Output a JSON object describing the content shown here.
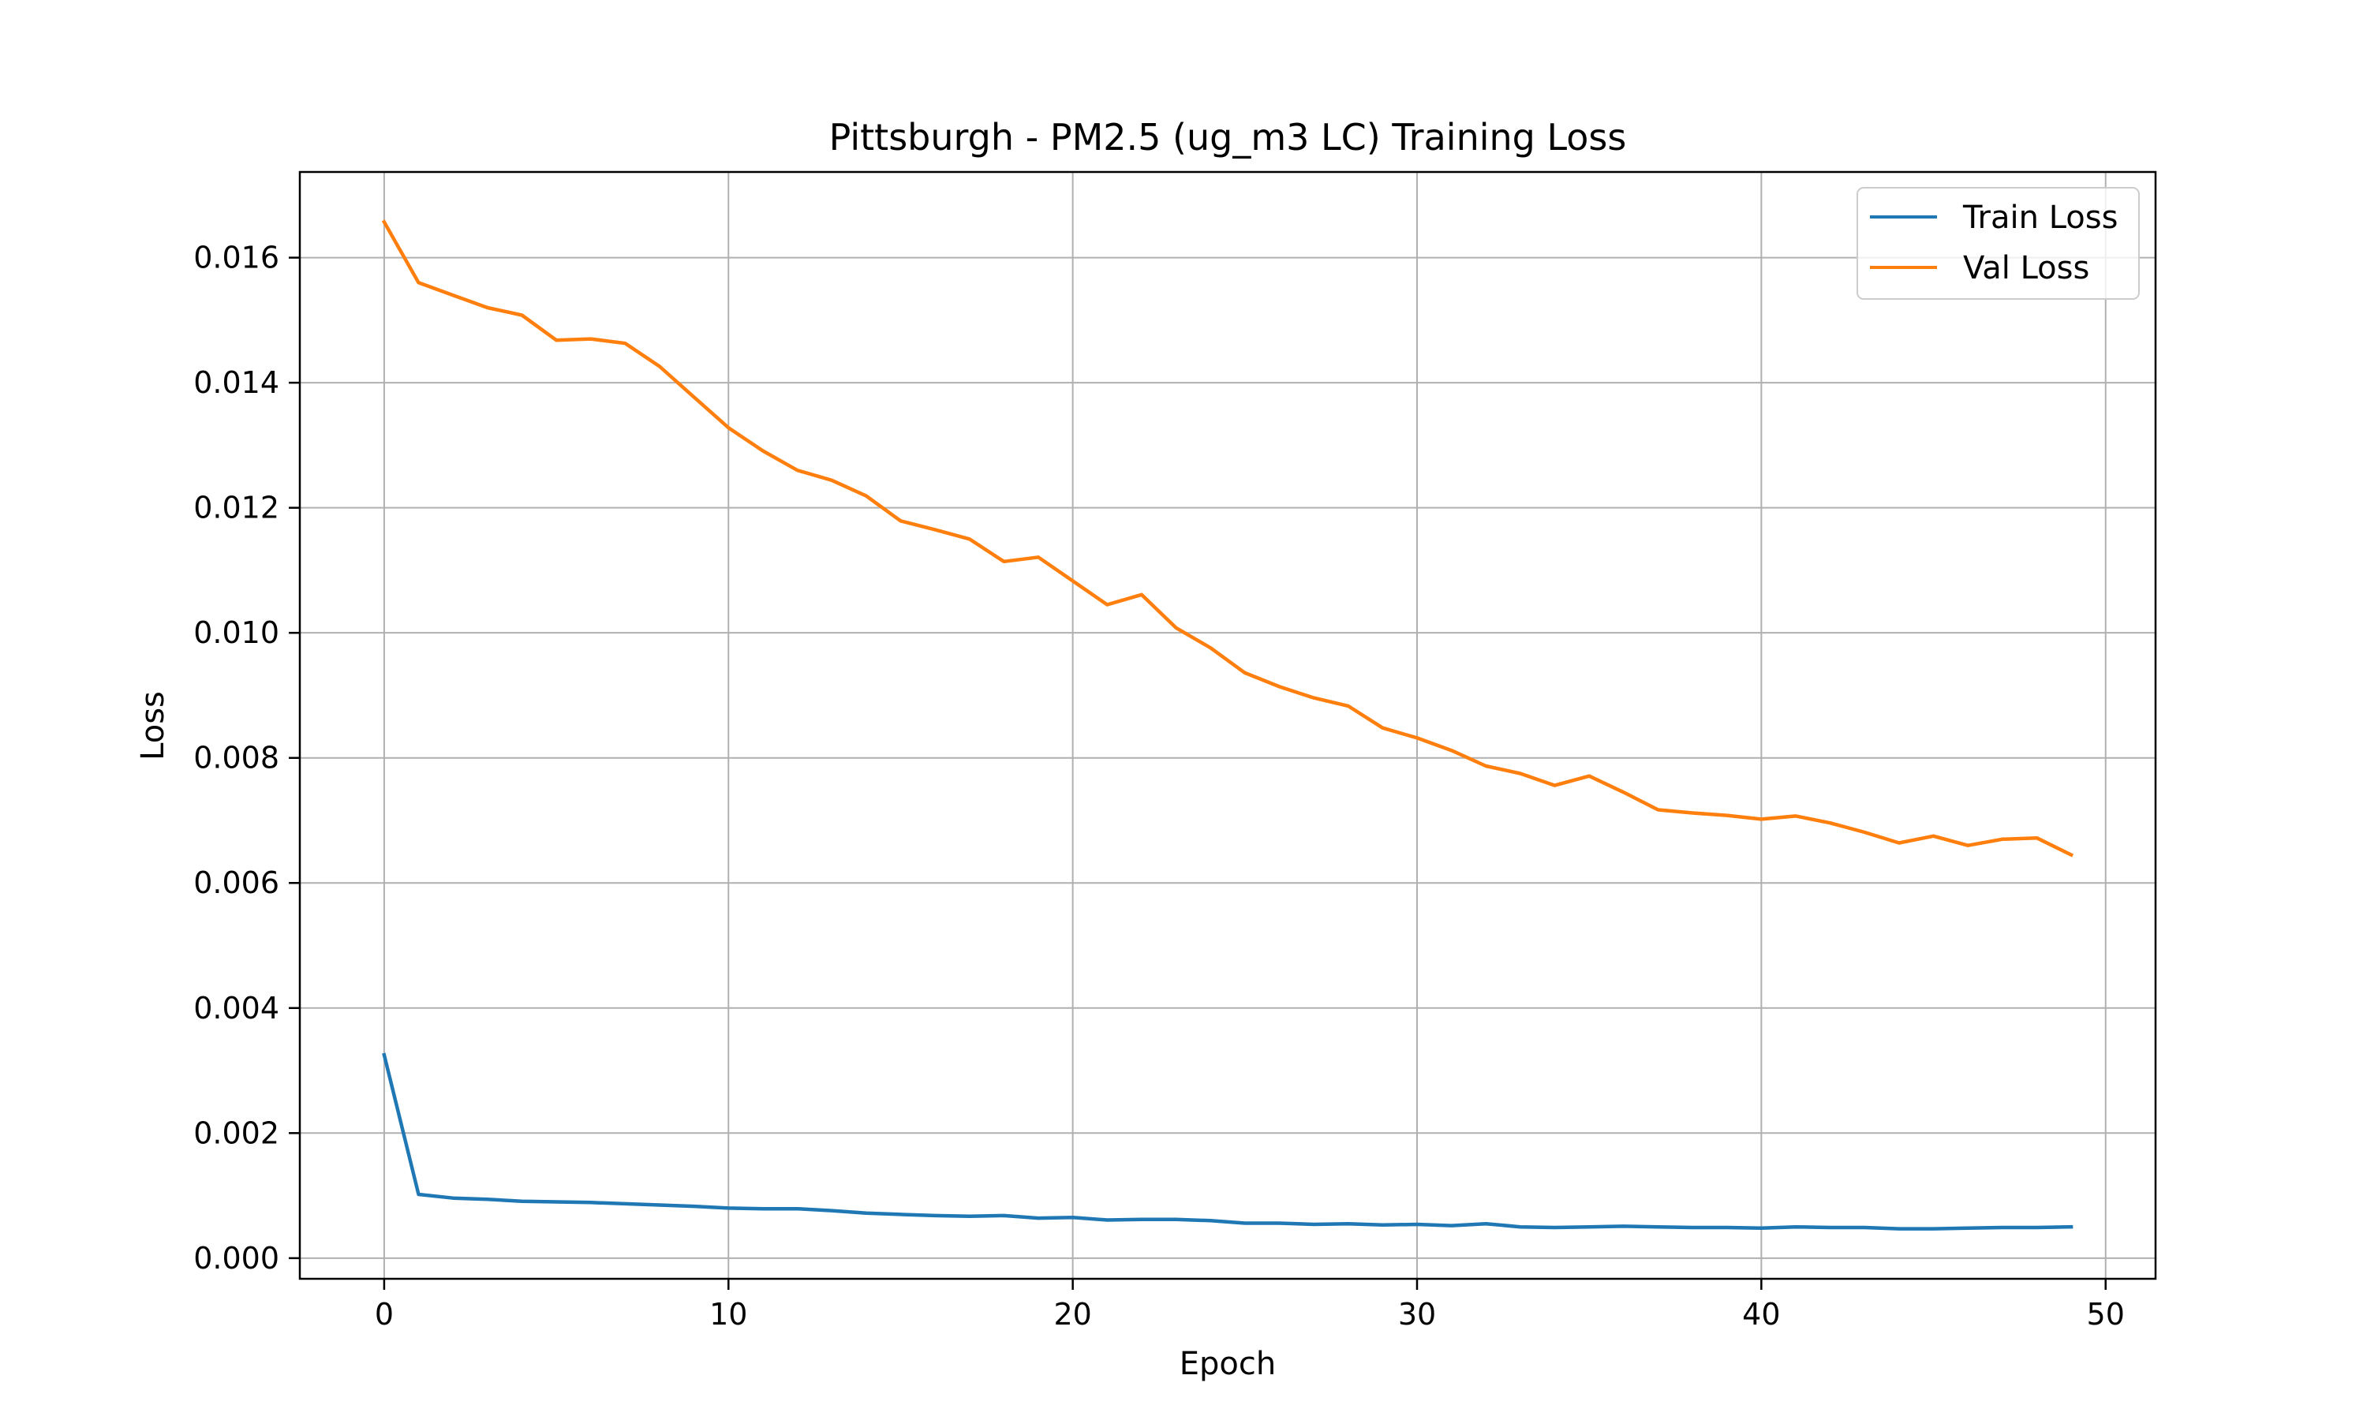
{
  "chart_data": {
    "type": "line",
    "title": "Pittsburgh - PM2.5 (ug_m3 LC) Training Loss",
    "xlabel": "Epoch",
    "ylabel": "Loss",
    "xlim": [
      -2.45,
      51.45
    ],
    "ylim": [
      -0.00033,
      0.01737
    ],
    "xticks": [
      0,
      10,
      20,
      30,
      40,
      50
    ],
    "yticks": [
      0.0,
      0.002,
      0.004,
      0.006,
      0.008,
      0.01,
      0.012,
      0.014,
      0.016
    ],
    "xtick_labels": [
      "0",
      "10",
      "20",
      "30",
      "40",
      "50"
    ],
    "ytick_labels": [
      "0.000",
      "0.002",
      "0.004",
      "0.006",
      "0.008",
      "0.010",
      "0.012",
      "0.014",
      "0.016"
    ],
    "grid": true,
    "legend_position": "top-right",
    "x": [
      0,
      1,
      2,
      3,
      4,
      5,
      6,
      7,
      8,
      9,
      10,
      11,
      12,
      13,
      14,
      15,
      16,
      17,
      18,
      19,
      20,
      21,
      22,
      23,
      24,
      25,
      26,
      27,
      28,
      29,
      30,
      31,
      32,
      33,
      34,
      35,
      36,
      37,
      38,
      39,
      40,
      41,
      42,
      43,
      44,
      45,
      46,
      47,
      48,
      49
    ],
    "series": [
      {
        "name": "Train Loss",
        "color": "#1f77b4",
        "values": [
          0.00325,
          0.00102,
          0.00096,
          0.00094,
          0.00091,
          0.0009,
          0.00089,
          0.00087,
          0.00085,
          0.00083,
          0.0008,
          0.00079,
          0.00079,
          0.00076,
          0.00072,
          0.0007,
          0.00068,
          0.00067,
          0.00068,
          0.00064,
          0.00065,
          0.00061,
          0.00062,
          0.00062,
          0.0006,
          0.00056,
          0.00056,
          0.00054,
          0.00055,
          0.00053,
          0.00054,
          0.00052,
          0.00055,
          0.0005,
          0.00049,
          0.0005,
          0.00051,
          0.0005,
          0.00049,
          0.00049,
          0.00048,
          0.0005,
          0.00049,
          0.00049,
          0.00047,
          0.00047,
          0.00048,
          0.00049,
          0.00049,
          0.0005
        ]
      },
      {
        "name": "Val Loss",
        "color": "#ff7f0e",
        "values": [
          0.01657,
          0.0156,
          0.0154,
          0.0152,
          0.01508,
          0.01468,
          0.0147,
          0.01463,
          0.01426,
          0.01377,
          0.01328,
          0.01291,
          0.0126,
          0.01244,
          0.01219,
          0.01179,
          0.01165,
          0.0115,
          0.01114,
          0.01121,
          0.01083,
          0.01045,
          0.01061,
          0.01008,
          0.00976,
          0.00936,
          0.00914,
          0.00896,
          0.00883,
          0.00848,
          0.00832,
          0.00812,
          0.00787,
          0.00775,
          0.00756,
          0.00771,
          0.00745,
          0.00717,
          0.00712,
          0.00708,
          0.00702,
          0.00707,
          0.00696,
          0.00681,
          0.00664,
          0.00675,
          0.0066,
          0.0067,
          0.00672,
          0.00645
        ]
      }
    ]
  }
}
